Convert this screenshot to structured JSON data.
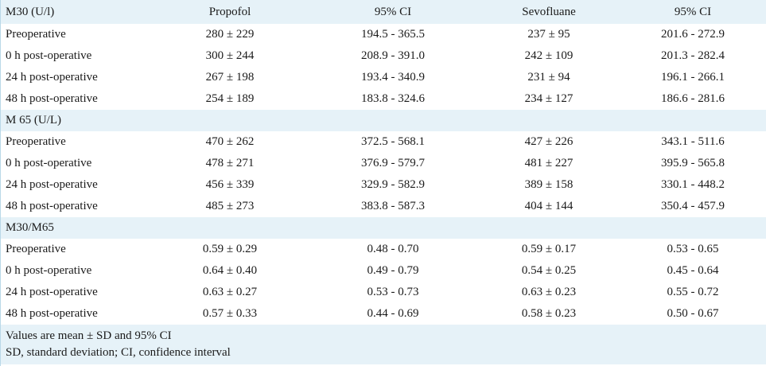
{
  "header": {
    "col0": "M30 (U/l)",
    "col1": "Propofol",
    "col2": "95% CI",
    "col3": "Sevofluane",
    "col4": "95% CI"
  },
  "sections": [
    {
      "title": "M30 (U/l)",
      "rows": [
        {
          "label": "Preoperative",
          "propofol": "280 ± 229",
          "ci1": "194.5 - 365.5",
          "sevo": "237 ± 95",
          "ci2": "201.6 - 272.9"
        },
        {
          "label": "0 h post-operative",
          "propofol": "300 ± 244",
          "ci1": "208.9 - 391.0",
          "sevo": "242 ± 109",
          "ci2": "201.3 - 282.4"
        },
        {
          "label": "24 h post-operative",
          "propofol": "267 ± 198",
          "ci1": "193.4 - 340.9",
          "sevo": "231 ± 94",
          "ci2": "196.1 - 266.1"
        },
        {
          "label": "48 h post-operative",
          "propofol": "254 ± 189",
          "ci1": "183.8 - 324.6",
          "sevo": "234 ± 127",
          "ci2": "186.6 - 281.6"
        }
      ]
    },
    {
      "title": "M 65 (U/L)",
      "rows": [
        {
          "label": "Preoperative",
          "propofol": "470 ± 262",
          "ci1": "372.5 - 568.1",
          "sevo": "427 ± 226",
          "ci2": "343.1 - 511.6"
        },
        {
          "label": "0 h post-operative",
          "propofol": "478 ± 271",
          "ci1": "376.9 - 579.7",
          "sevo": "481 ± 227",
          "ci2": "395.9 - 565.8"
        },
        {
          "label": "24 h post-operative",
          "propofol": "456 ± 339",
          "ci1": "329.9 - 582.9",
          "sevo": "389 ± 158",
          "ci2": "330.1 - 448.2"
        },
        {
          "label": "48 h post-operative",
          "propofol": "485 ± 273",
          "ci1": "383.8 - 587.3",
          "sevo": "404 ± 144",
          "ci2": "350.4 - 457.9"
        }
      ]
    },
    {
      "title": "M30/M65",
      "rows": [
        {
          "label": "Preoperative",
          "propofol": "0.59 ± 0.29",
          "ci1": "0.48 - 0.70",
          "sevo": "0.59 ± 0.17",
          "ci2": "0.53 - 0.65"
        },
        {
          "label": "0 h post-operative",
          "propofol": "0.64 ± 0.40",
          "ci1": "0.49 - 0.79",
          "sevo": "0.54 ± 0.25",
          "ci2": "0.45 - 0.64"
        },
        {
          "label": "24 h post-operative",
          "propofol": "0.63 ± 0.27",
          "ci1": "0.53 - 0.73",
          "sevo": "0.63 ± 0.23",
          "ci2": "0.55 - 0.72"
        },
        {
          "label": "48 h post-operative",
          "propofol": "0.57 ± 0.33",
          "ci1": "0.44 - 0.69",
          "sevo": "0.58 ± 0.23",
          "ci2": "0.50 - 0.67"
        }
      ]
    }
  ],
  "footnotes": [
    "Values are mean ± SD and 95% CI",
    "SD, standard deviation; CI, confidence interval"
  ]
}
